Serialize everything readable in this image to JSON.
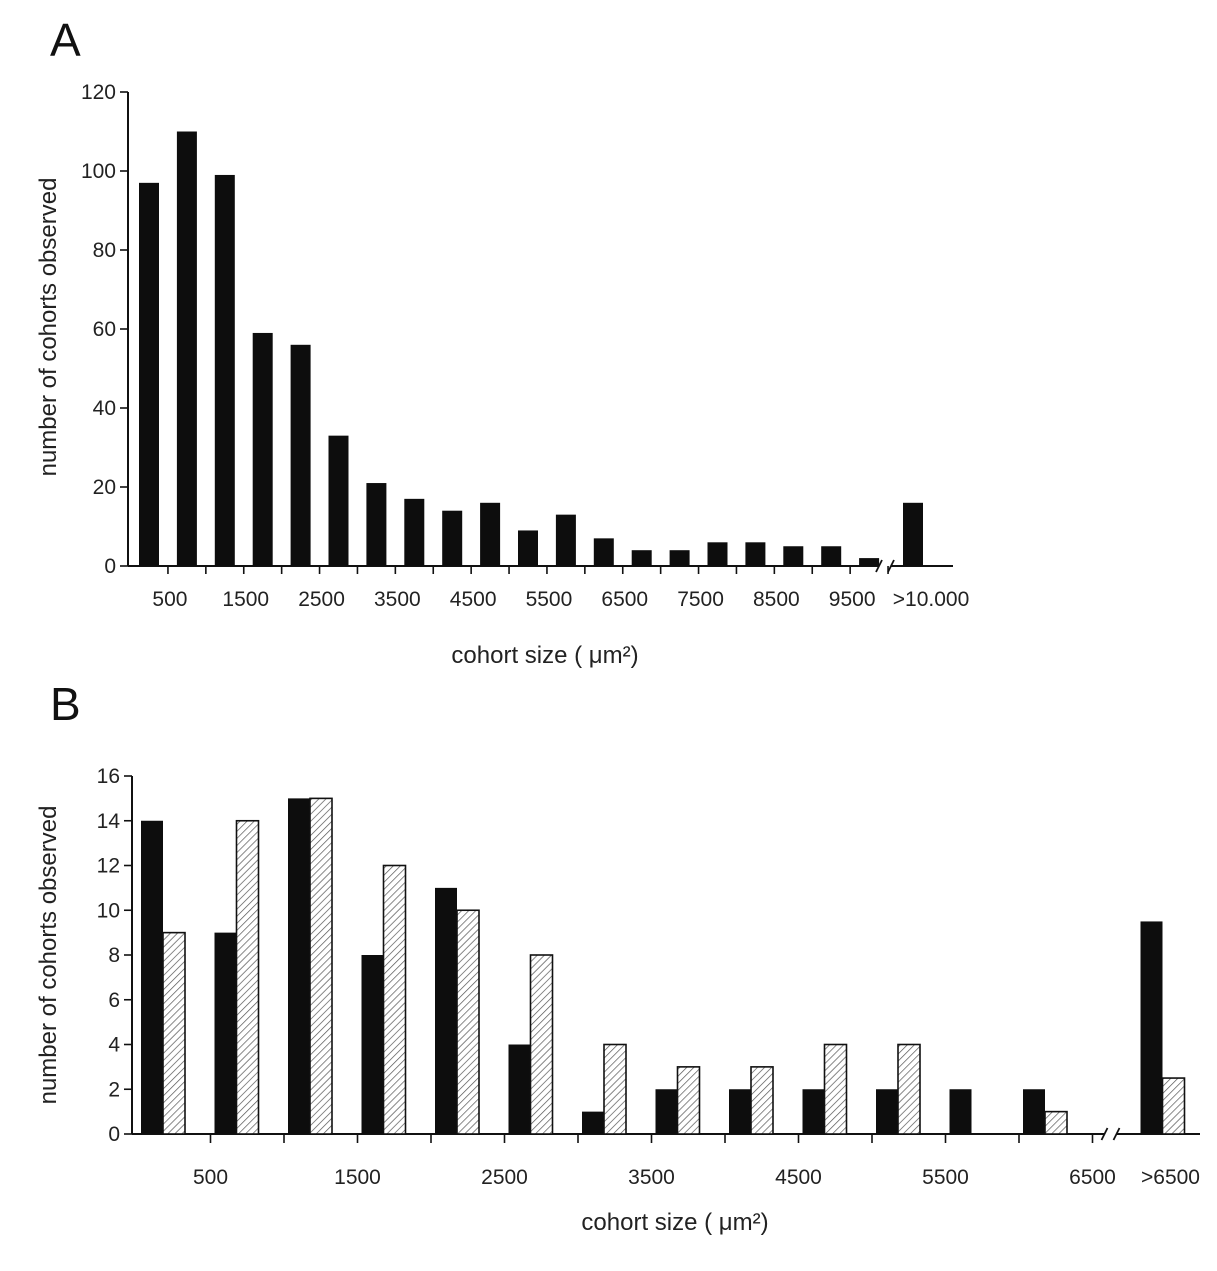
{
  "chart_data": [
    {
      "panel": "A",
      "type": "bar",
      "xlabel": "cohort size ( μm²)",
      "ylabel": "number of cohorts observed",
      "ylim": [
        0,
        120
      ],
      "yticks": [
        0,
        20,
        40,
        60,
        80,
        100,
        120
      ],
      "xtick_labels": [
        "500",
        "1500",
        "2500",
        "3500",
        "4500",
        "5500",
        "6500",
        "7500",
        "8500",
        "9500",
        ">10.000"
      ],
      "axis_break": "before last bar",
      "series": [
        {
          "values": [
            97,
            110,
            99,
            59,
            56,
            33,
            21,
            17,
            14,
            16,
            9,
            13,
            7,
            4,
            4,
            6,
            6,
            5,
            5,
            2,
            16
          ]
        }
      ]
    },
    {
      "panel": "B",
      "type": "bar",
      "xlabel": "cohort size ( μm²)",
      "ylabel": "number of cohorts observed",
      "ylim": [
        0,
        16
      ],
      "yticks": [
        0,
        2,
        4,
        6,
        8,
        10,
        12,
        14,
        16
      ],
      "xtick_labels": [
        "500",
        "1500",
        "2500",
        "3500",
        "4500",
        "5500",
        "6500",
        ">6500"
      ],
      "axis_break": "before last group",
      "series": [
        {
          "style": "solid",
          "values": [
            14,
            9,
            15,
            8,
            11,
            4,
            1,
            2,
            2,
            2,
            2,
            2,
            2,
            9.5
          ]
        },
        {
          "style": "hatched",
          "values": [
            9,
            14,
            15,
            12,
            10,
            8,
            4,
            3,
            3,
            4,
            4,
            0,
            1,
            2.5
          ]
        }
      ]
    }
  ]
}
